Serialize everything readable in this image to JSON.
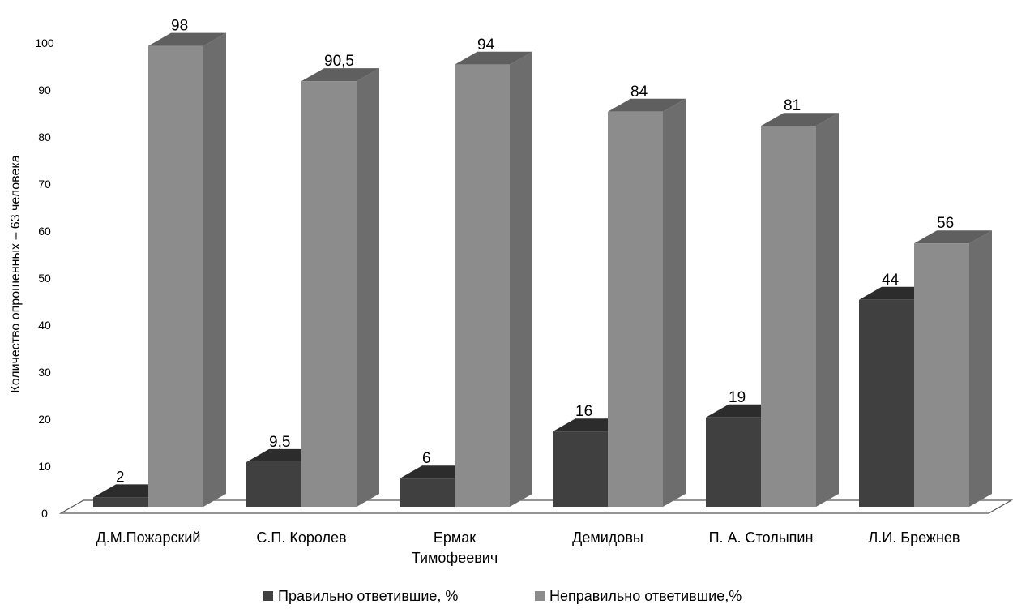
{
  "chart_data": {
    "type": "bar",
    "ylabel": "Количество опрошенных – 63 человека",
    "ylim": [
      0,
      100
    ],
    "yticks": [
      "0",
      "10",
      "20",
      "30",
      "40",
      "50",
      "60",
      "70",
      "80",
      "90",
      "100"
    ],
    "categories": [
      [
        "Д.М.Пожарский"
      ],
      [
        "С.П. Королев"
      ],
      [
        "Ермак",
        "Тимофеевич"
      ],
      [
        "Демидовы"
      ],
      [
        "П. А. Столыпин"
      ],
      [
        "Л.И. Брежнев"
      ]
    ],
    "series": [
      {
        "name": "Правильно ответившие, %",
        "values": [
          2,
          9.5,
          6,
          16,
          19,
          44
        ],
        "labels": [
          "2",
          "9,5",
          "6",
          "16",
          "19",
          "44"
        ],
        "color": "#404040"
      },
      {
        "name": "Неправильно ответившие,%",
        "values": [
          98,
          90.5,
          94,
          84,
          81,
          56
        ],
        "labels": [
          "98",
          "90,5",
          "94",
          "84",
          "81",
          "56"
        ],
        "color": "#8c8c8c"
      }
    ],
    "legend_position": "bottom",
    "grid": false,
    "style": "3d-column"
  }
}
